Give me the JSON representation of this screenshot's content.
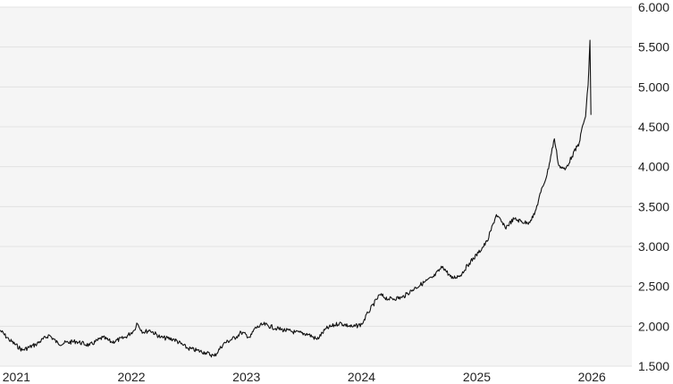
{
  "chart_data": {
    "type": "line",
    "title": "",
    "xlabel": "",
    "ylabel": "",
    "xlim": [
      "2020-11-10",
      "2026-05-08"
    ],
    "ylim": [
      1500,
      6000
    ],
    "grid": true,
    "legend": "none",
    "y_ticks": [
      1500,
      2000,
      2500,
      3000,
      3500,
      4000,
      4500,
      5000,
      5500,
      6000
    ],
    "y_tick_labels": [
      "1.500",
      "2.000",
      "2.500",
      "3.000",
      "3.500",
      "4.000",
      "4.500",
      "5.000",
      "5.500",
      "6.000"
    ],
    "x_ticks": [
      "2021-01-01",
      "2022-01-01",
      "2023-01-01",
      "2024-01-01",
      "2025-01-01",
      "2026-01-01"
    ],
    "x_tick_labels": [
      "2021",
      "2022",
      "2023",
      "2024",
      "2025",
      "2026"
    ],
    "colors": {
      "line": "#111111",
      "plot_bg": "#f5f5f5",
      "grid": "#e2e2e2"
    },
    "series": [
      {
        "x": [
          "2020-11-10",
          "2020-12-08",
          "2021-01-20",
          "2021-03-03",
          "2021-04-15",
          "2021-05-14",
          "2021-07-09",
          "2021-08-21",
          "2021-10-02",
          "2021-10-31",
          "2021-12-12",
          "2022-01-10",
          "2022-01-18",
          "2022-02-07",
          "2022-03-01",
          "2022-04-04",
          "2022-05-17",
          "2022-06-28",
          "2022-08-24",
          "2022-09-21",
          "2022-10-20",
          "2022-12-01",
          "2022-12-15",
          "2023-01-13",
          "2023-01-27",
          "2023-02-24",
          "2023-04-08",
          "2023-06-04",
          "2023-07-16",
          "2023-08-13",
          "2023-09-11",
          "2023-10-23",
          "2023-12-04",
          "2024-01-02",
          "2024-01-22",
          "2024-02-28",
          "2024-03-27",
          "2024-05-09",
          "2024-06-21",
          "2024-08-17",
          "2024-09-15",
          "2024-10-13",
          "2024-11-10",
          "2024-12-08",
          "2025-01-06",
          "2025-02-03",
          "2025-03-04",
          "2025-04-01",
          "2025-04-29",
          "2025-06-11",
          "2025-07-03",
          "2025-07-23",
          "2025-08-12",
          "2025-09-04",
          "2025-09-18",
          "2025-10-08",
          "2025-10-30",
          "2025-11-22",
          "2025-12-03",
          "2025-12-12",
          "2025-12-20",
          "2025-12-26",
          "2025-12-29"
        ],
        "y": [
          1950,
          1835,
          1700,
          1770,
          1890,
          1780,
          1810,
          1760,
          1860,
          1800,
          1860,
          1950,
          2040,
          1925,
          1950,
          1860,
          1835,
          1725,
          1670,
          1625,
          1780,
          1870,
          1925,
          1860,
          1970,
          2025,
          1970,
          1925,
          1900,
          1835,
          1970,
          2040,
          1990,
          2025,
          2170,
          2395,
          2340,
          2360,
          2485,
          2620,
          2750,
          2600,
          2640,
          2790,
          2920,
          3065,
          3400,
          3235,
          3345,
          3290,
          3400,
          3680,
          3905,
          4350,
          4015,
          3960,
          4130,
          4300,
          4520,
          4630,
          5020,
          5585,
          4650
        ]
      }
    ]
  }
}
